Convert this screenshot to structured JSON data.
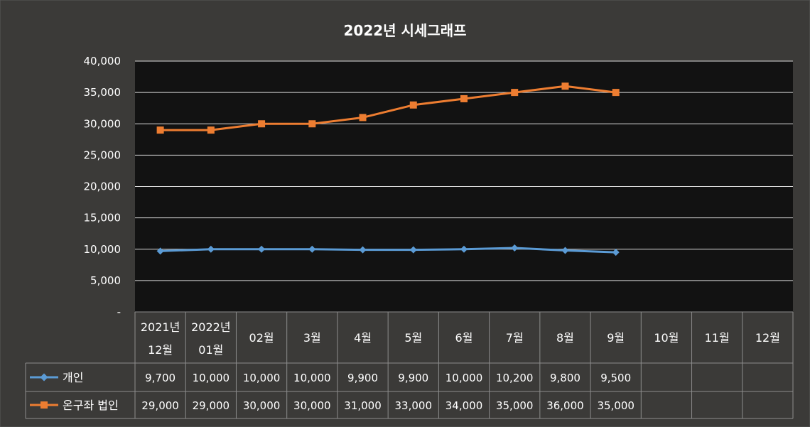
{
  "chart_data": {
    "type": "line",
    "title": "2022년 시세그래프",
    "categories": [
      [
        "2021년",
        "12월"
      ],
      [
        "2022년",
        "01월"
      ],
      [
        "02월"
      ],
      [
        "3월"
      ],
      [
        "4월"
      ],
      [
        "5월"
      ],
      [
        "6월"
      ],
      [
        "7월"
      ],
      [
        "8월"
      ],
      [
        "9월"
      ],
      [
        "10월"
      ],
      [
        "11월"
      ],
      [
        "12월"
      ]
    ],
    "y_ticks": [
      "-",
      "5,000",
      "10,000",
      "15,000",
      "20,000",
      "25,000",
      "30,000",
      "35,000",
      "40,000"
    ],
    "ylim": [
      0,
      40000
    ],
    "grid": true,
    "legend": "data-table",
    "series": [
      {
        "name": "개인",
        "color": "#5b9bd5",
        "marker": "diamond",
        "values": [
          9700,
          10000,
          10000,
          10000,
          9900,
          9900,
          10000,
          10200,
          9800,
          9500,
          null,
          null,
          null
        ],
        "labels": [
          "9,700",
          "10,000",
          "10,000",
          "10,000",
          "9,900",
          "9,900",
          "10,000",
          "10,200",
          "9,800",
          "9,500",
          "",
          "",
          ""
        ]
      },
      {
        "name": "온구좌 법인",
        "color": "#ed7d31",
        "marker": "square",
        "values": [
          29000,
          29000,
          30000,
          30000,
          31000,
          33000,
          34000,
          35000,
          36000,
          35000,
          null,
          null,
          null
        ],
        "labels": [
          "29,000",
          "29,000",
          "30,000",
          "30,000",
          "31,000",
          "33,000",
          "34,000",
          "35,000",
          "36,000",
          "35,000",
          "",
          "",
          ""
        ]
      }
    ],
    "colors": {
      "background": "#3b3a38",
      "plot_background": "#121212",
      "grid": "#d9d9d9",
      "table_border": "#8c8c8c"
    }
  }
}
